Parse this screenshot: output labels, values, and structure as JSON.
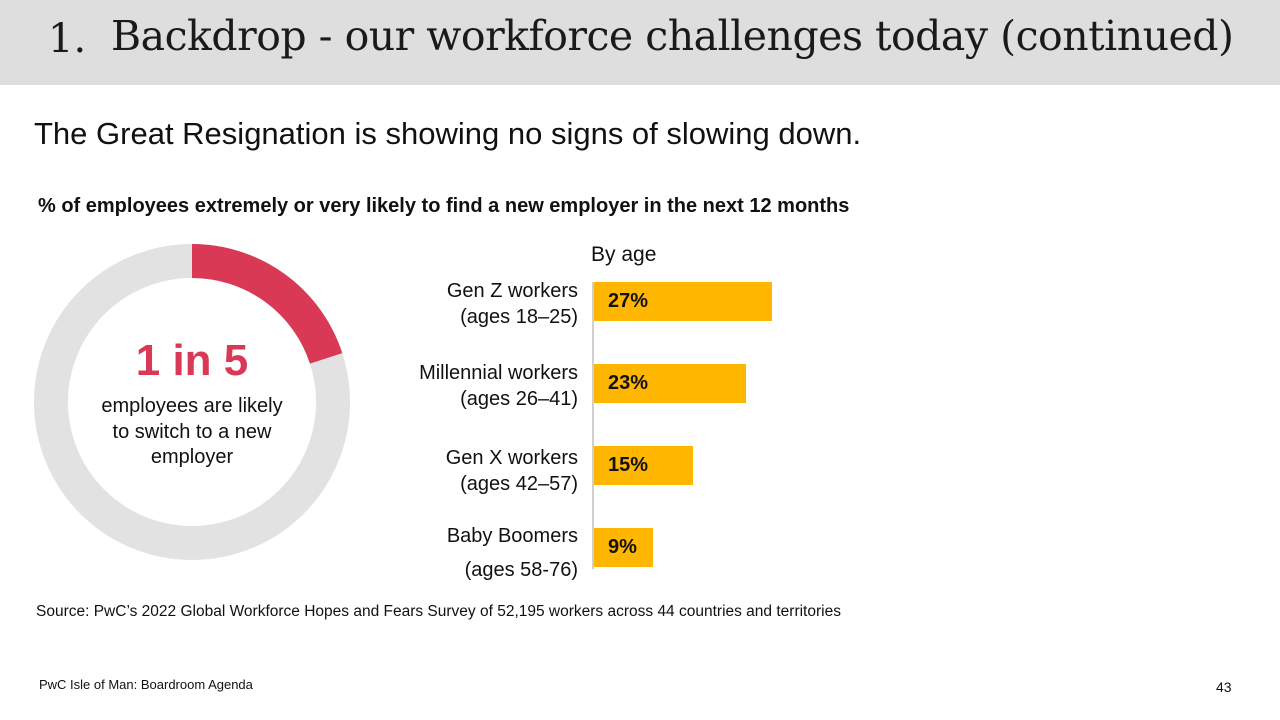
{
  "header": {
    "number": "1.",
    "title": "Backdrop - our workforce challenges today (continued)"
  },
  "subtitle": "The Great Resignation is showing no signs of slowing down.",
  "donut": {
    "headline": "1 in 5",
    "text_lines": [
      "employees are likely",
      "to switch to a new",
      "employer"
    ],
    "fraction": 0.2,
    "colors": {
      "highlight": "#d93954",
      "rest": "#e2e2e2"
    }
  },
  "chart_data": {
    "type": "bar",
    "title": "% of employees extremely or very likely to find a new employer in the next 12 months",
    "subtitle": "By age",
    "categories": [
      [
        "Gen Z workers",
        "(ages 18–25)"
      ],
      [
        "Millennial workers",
        "(ages 26–41)"
      ],
      [
        "Gen X workers",
        "(ages 42–57)"
      ],
      [
        "Baby Boomers",
        "(ages 58-76)"
      ]
    ],
    "values": [
      27,
      23,
      15,
      9
    ],
    "value_labels": [
      "27%",
      "23%",
      "15%",
      "9%"
    ],
    "xlim": [
      0,
      30
    ],
    "orientation": "horizontal",
    "bar_color": "#ffb600",
    "grid": false,
    "legend": "none"
  },
  "source": "Source: PwC’s 2022 Global Workforce Hopes and Fears Survey of 52,195 workers across 44 countries and territories",
  "footer": {
    "left": "PwC Isle of Man: Boardroom Agenda",
    "page": "43"
  }
}
